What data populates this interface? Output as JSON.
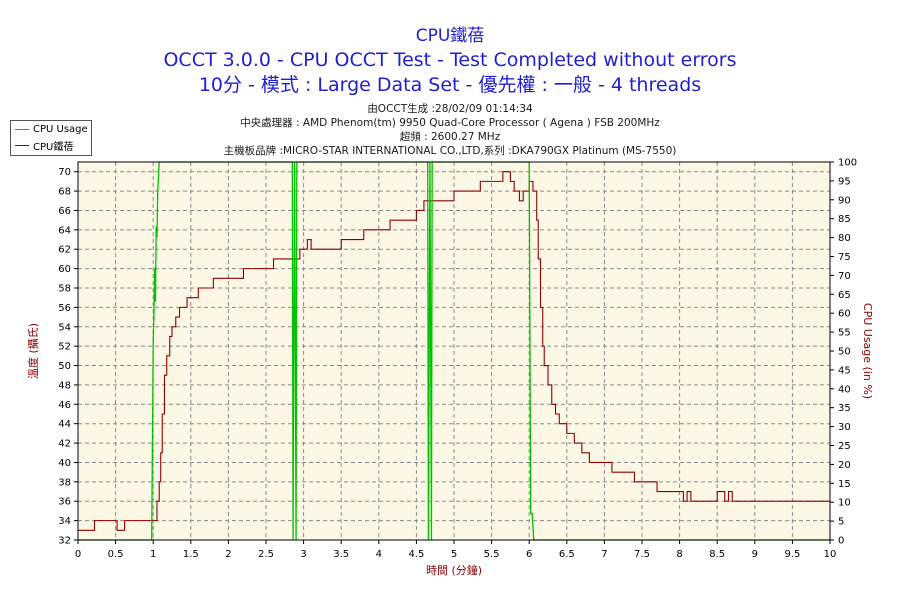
{
  "titles": {
    "line1": "CPU鐵蓓",
    "line2": "OCCT 3.0.0 - CPU OCCT Test - Test Completed without errors",
    "line3": "10分 - 模式 : Large Data Set - 優先權 : 一般 - 4 threads"
  },
  "meta": {
    "generated": "由OCCT生成 :28/02/09 01:14:34",
    "cpu": "中央處理器 : AMD Phenom(tm) 9950 Quad-Core Processor ( Agena ) FSB 200MHz",
    "clock": "超頻 : 2600.27 MHz",
    "board": "主機板品牌 :MICRO-STAR INTERNATIONAL CO.,LTD,系列 :DKA790GX Platinum (MS-7550)"
  },
  "legend": {
    "cpu_usage": "CPU Usage",
    "cpu_temp": "CPU鐵蓓"
  },
  "chart_data": {
    "type": "line",
    "xlabel": "時間 (分鐘)",
    "ylabel": "溫度 (攝氏)",
    "y2label": "CPU Usage (in %)",
    "xlim": [
      0,
      10
    ],
    "ylim": [
      32,
      71
    ],
    "y2lim": [
      0,
      100
    ],
    "x_ticks": [
      "0",
      "0.5",
      "1",
      "1.5",
      "2",
      "2.5",
      "3",
      "3.5",
      "4",
      "4.5",
      "5",
      "5.5",
      "6",
      "6.5",
      "7",
      "7.5",
      "8",
      "8.5",
      "9",
      "9.5",
      "10"
    ],
    "y_ticks": [
      "32",
      "34",
      "36",
      "38",
      "40",
      "42",
      "44",
      "46",
      "48",
      "50",
      "52",
      "54",
      "56",
      "58",
      "60",
      "62",
      "64",
      "66",
      "68",
      "70"
    ],
    "y2_ticks": [
      "0",
      "5",
      "10",
      "15",
      "20",
      "25",
      "30",
      "35",
      "40",
      "45",
      "50",
      "55",
      "60",
      "65",
      "70",
      "75",
      "80",
      "85",
      "90",
      "95",
      "100"
    ],
    "grid": true,
    "legend_position": "top-left",
    "colors": {
      "temp": "#8b0000",
      "usage": "#00c000",
      "background": "#fdf8e6",
      "grid": "#8a8a8a"
    },
    "series": [
      {
        "name": "CPU鐵蓓",
        "axis": "left",
        "x": [
          0,
          0.2,
          0.22,
          0.5,
          0.52,
          0.6,
          0.62,
          1.0,
          1.05,
          1.08,
          1.1,
          1.12,
          1.15,
          1.18,
          1.22,
          1.25,
          1.3,
          1.35,
          1.4,
          1.45,
          1.5,
          1.6,
          1.7,
          1.8,
          1.95,
          2.2,
          2.4,
          2.6,
          2.9,
          2.95,
          3.05,
          3.1,
          3.35,
          3.5,
          3.75,
          3.8,
          4.05,
          4.15,
          4.5,
          4.6,
          4.9,
          5.0,
          5.35,
          5.6,
          5.65,
          5.75,
          5.8,
          5.87,
          5.92,
          6.0,
          6.05,
          6.1,
          6.12,
          6.15,
          6.18,
          6.2,
          6.25,
          6.3,
          6.35,
          6.4,
          6.5,
          6.6,
          6.7,
          6.8,
          6.9,
          7.1,
          7.4,
          7.7,
          8.0,
          8.05,
          8.1,
          8.15,
          8.4,
          8.5,
          8.6,
          8.65,
          8.7,
          10.0
        ],
        "y": [
          33,
          33,
          34,
          34,
          33,
          33,
          34,
          34,
          36,
          38,
          41,
          45,
          49,
          51,
          53,
          54,
          55,
          56,
          56,
          57,
          57,
          58,
          58,
          59,
          59,
          60,
          60,
          61,
          61,
          62,
          63,
          62,
          62,
          63,
          63,
          64,
          64,
          65,
          66,
          67,
          67,
          68,
          69,
          69,
          70,
          69,
          68,
          67,
          68,
          69,
          68,
          65,
          61,
          56,
          52,
          50,
          48,
          46,
          45,
          44,
          43,
          42,
          41,
          40,
          40,
          39,
          38,
          37,
          37,
          36,
          37,
          36,
          36,
          37,
          36,
          37,
          36,
          36
        ]
      },
      {
        "name": "CPU Usage",
        "axis": "right",
        "x": [
          0,
          0.98,
          1.0,
          1.01,
          1.02,
          1.03,
          1.04,
          1.05,
          1.06,
          1.08,
          1.12,
          2.85,
          2.86,
          2.88,
          2.9,
          2.91,
          2.93,
          4.65,
          4.66,
          4.68,
          4.7,
          4.71,
          4.73,
          6.0,
          6.02,
          6.04,
          6.06,
          10.0
        ],
        "y": [
          0,
          0,
          52,
          60,
          72,
          63,
          83,
          80,
          92,
          100,
          100,
          100,
          0,
          100,
          0,
          100,
          100,
          100,
          0,
          100,
          0,
          100,
          100,
          100,
          7,
          7,
          0,
          0
        ]
      }
    ]
  }
}
